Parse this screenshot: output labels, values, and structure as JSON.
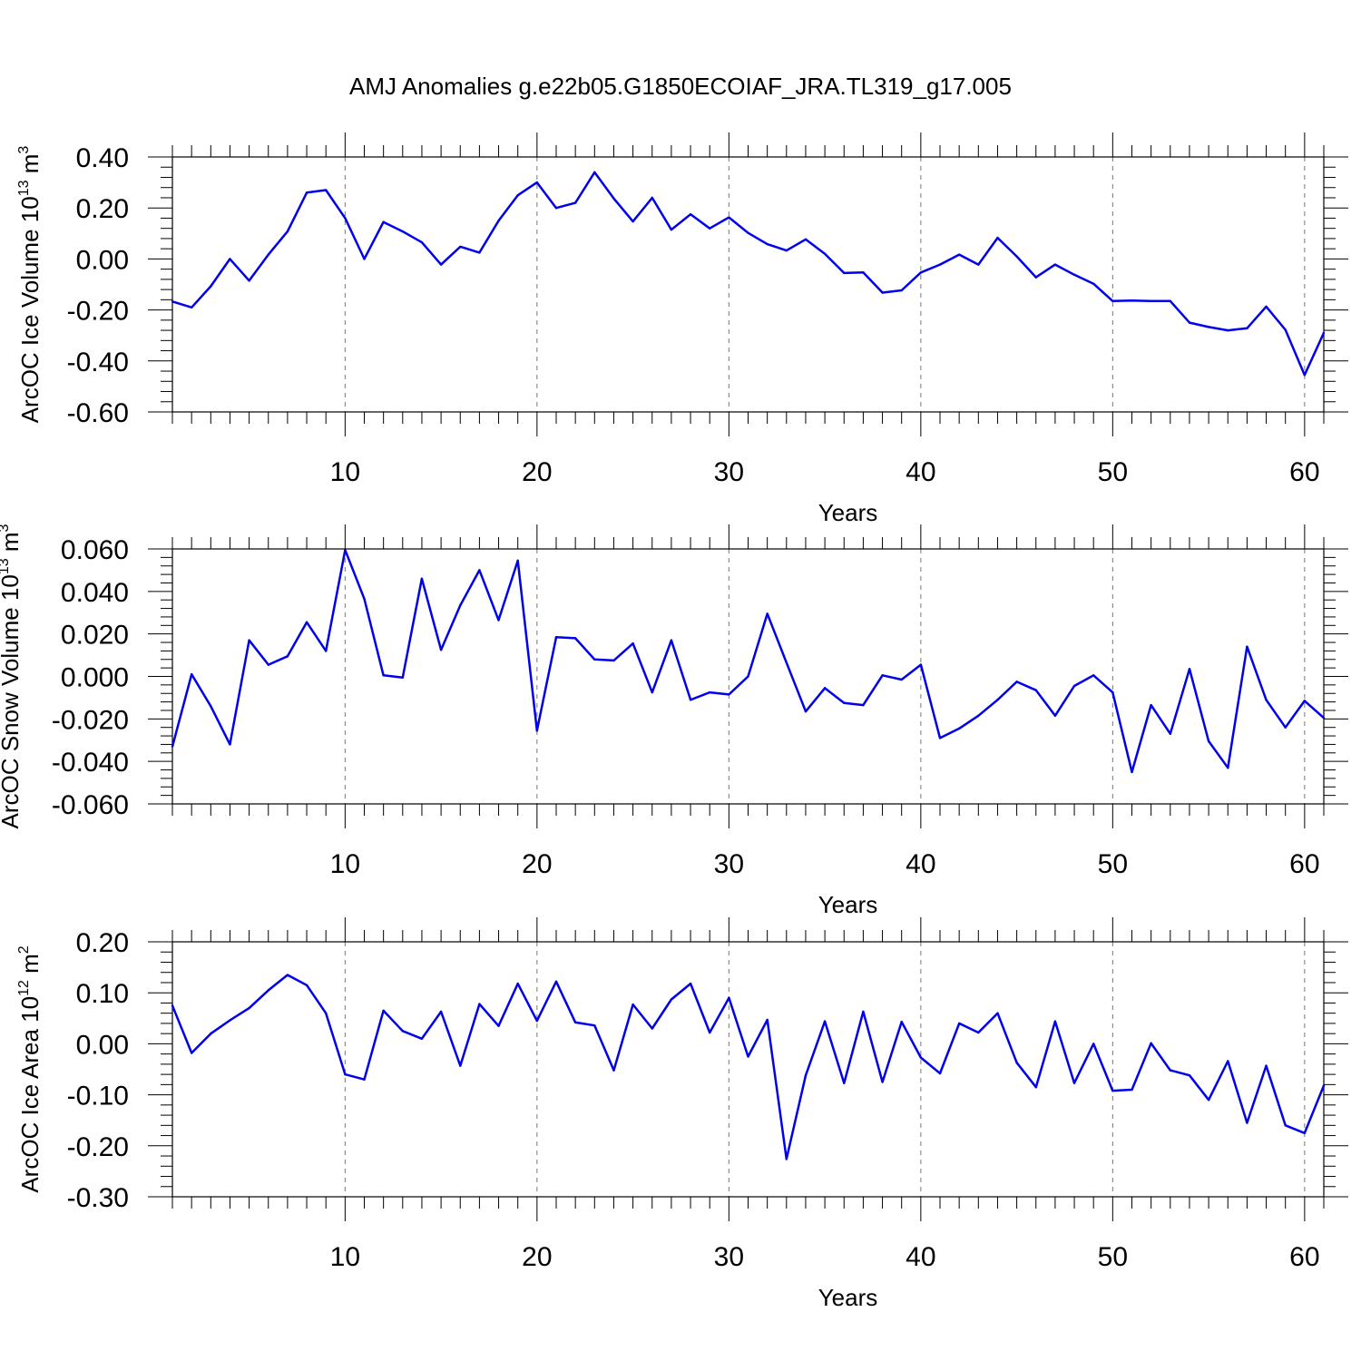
{
  "title": "AMJ Anomalies g.e22b05.G1850ECOIAF_JRA.TL319_g17.005",
  "chart_data": [
    {
      "type": "line",
      "xlabel": "Years",
      "ylabel": "ArcOC Ice Volume 10",
      "ylabel_exp": "13",
      "ylabel_unit": "m",
      "ylabel_unit_exp": "3",
      "xlim": [
        1,
        61
      ],
      "ylim": [
        -0.6,
        0.4
      ],
      "xticks": [
        10,
        20,
        30,
        40,
        50,
        60
      ],
      "yticks": [
        "0.40",
        "0.20",
        "0.00",
        "-0.20",
        "-0.40",
        "-0.60"
      ],
      "ytick_values": [
        0.4,
        0.2,
        0.0,
        -0.2,
        -0.4,
        -0.6
      ],
      "grid": "vertical-dashed",
      "line_color": "#0000ee",
      "values": [
        -0.167,
        -0.19,
        -0.107,
        0.0,
        -0.085,
        0.017,
        0.108,
        0.26,
        0.27,
        0.16,
        0.0,
        0.145,
        0.108,
        0.065,
        -0.022,
        0.048,
        0.025,
        0.15,
        0.25,
        0.3,
        0.2,
        0.22,
        0.34,
        0.237,
        0.147,
        0.24,
        0.115,
        0.175,
        0.12,
        0.163,
        0.102,
        0.058,
        0.033,
        0.077,
        0.02,
        -0.055,
        -0.053,
        -0.132,
        -0.123,
        -0.053,
        -0.022,
        0.017,
        -0.022,
        0.083,
        0.01,
        -0.072,
        -0.022,
        -0.062,
        -0.097,
        -0.165,
        -0.163,
        -0.165,
        -0.165,
        -0.25,
        -0.267,
        -0.28,
        -0.272,
        -0.187,
        -0.278,
        -0.455,
        -0.29
      ]
    },
    {
      "type": "line",
      "xlabel": "Years",
      "ylabel": "ArcOC Snow Volume 10",
      "ylabel_exp": "13",
      "ylabel_unit": "m",
      "ylabel_unit_exp": "3",
      "xlim": [
        1,
        61
      ],
      "ylim": [
        -0.06,
        0.06
      ],
      "xticks": [
        10,
        20,
        30,
        40,
        50,
        60
      ],
      "yticks": [
        "0.060",
        "0.040",
        "0.020",
        "0.000",
        "-0.020",
        "-0.040",
        "-0.060"
      ],
      "ytick_values": [
        0.06,
        0.04,
        0.02,
        0.0,
        -0.02,
        -0.04,
        -0.06
      ],
      "grid": "vertical-dashed",
      "line_color": "#0000ee",
      "values": [
        -0.033,
        0.001,
        -0.014,
        -0.032,
        0.017,
        0.0055,
        0.0095,
        0.0255,
        0.012,
        0.0595,
        0.0365,
        0.0005,
        -0.0005,
        0.046,
        0.0125,
        0.0335,
        0.05,
        0.0265,
        0.0545,
        -0.0255,
        0.0185,
        0.018,
        0.008,
        0.0075,
        0.0155,
        -0.0075,
        0.017,
        -0.011,
        -0.0075,
        -0.0085,
        0.0,
        0.0295,
        0.0065,
        -0.0165,
        -0.0055,
        -0.0125,
        -0.0135,
        0.0005,
        -0.0015,
        0.0055,
        -0.029,
        -0.0245,
        -0.0185,
        -0.011,
        -0.0025,
        -0.0065,
        -0.0185,
        -0.0045,
        0.0005,
        -0.0075,
        -0.045,
        -0.0135,
        -0.027,
        0.0035,
        -0.0305,
        -0.043,
        0.014,
        -0.011,
        -0.024,
        -0.0115,
        -0.0195
      ]
    },
    {
      "type": "line",
      "xlabel": "Years",
      "ylabel": "ArcOC Ice Area 10",
      "ylabel_exp": "12",
      "ylabel_unit": "m",
      "ylabel_unit_exp": "2",
      "xlim": [
        1,
        61
      ],
      "ylim": [
        -0.3,
        0.2
      ],
      "xticks": [
        10,
        20,
        30,
        40,
        50,
        60
      ],
      "yticks": [
        "0.20",
        "0.10",
        "0.00",
        "-0.10",
        "-0.20",
        "-0.30"
      ],
      "ytick_values": [
        0.2,
        0.1,
        0.0,
        -0.1,
        -0.2,
        -0.3
      ],
      "grid": "vertical-dashed",
      "line_color": "#0000ee",
      "values": [
        0.075,
        -0.018,
        0.02,
        0.046,
        0.07,
        0.105,
        0.135,
        0.115,
        0.06,
        -0.06,
        -0.07,
        0.065,
        0.025,
        0.01,
        0.063,
        -0.043,
        0.078,
        0.035,
        0.118,
        0.045,
        0.122,
        0.042,
        0.036,
        -0.052,
        0.077,
        0.03,
        0.087,
        0.118,
        0.022,
        0.09,
        -0.025,
        0.047,
        -0.226,
        -0.062,
        0.044,
        -0.077,
        0.063,
        -0.075,
        0.043,
        -0.027,
        -0.058,
        0.04,
        0.022,
        0.06,
        -0.037,
        -0.085,
        0.044,
        -0.077,
        0.0,
        -0.092,
        -0.09,
        0.001,
        -0.052,
        -0.062,
        -0.11,
        -0.034,
        -0.155,
        -0.043,
        -0.16,
        -0.175,
        -0.082
      ]
    }
  ]
}
